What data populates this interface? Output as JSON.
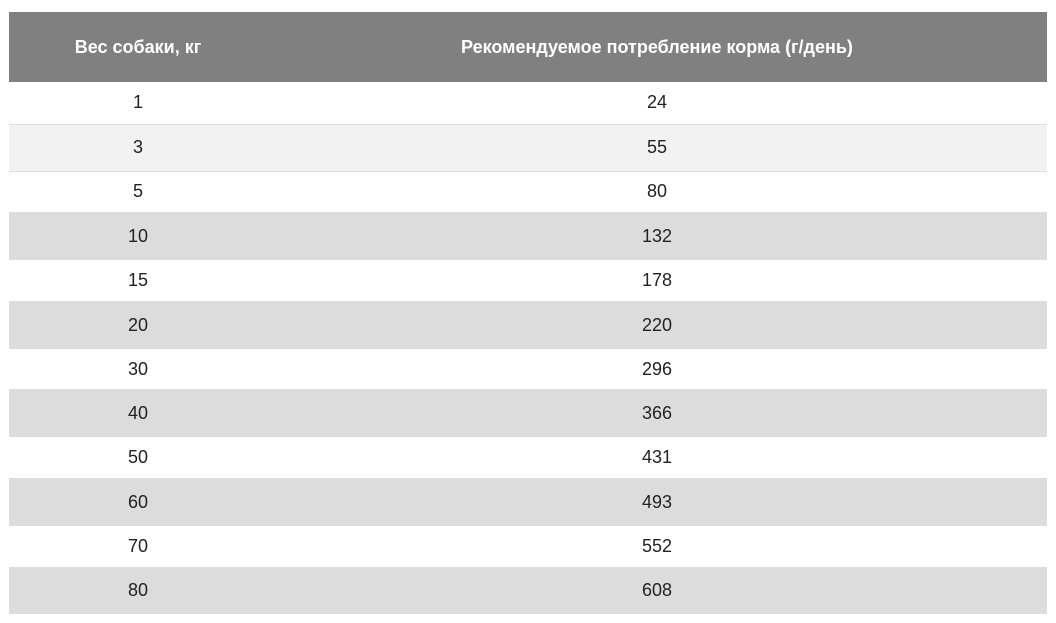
{
  "table": {
    "headers": [
      "Вес собаки, кг",
      "Рекомендуемое потребление корма (г/день)"
    ],
    "rows": [
      [
        "1",
        "24"
      ],
      [
        "3",
        "55"
      ],
      [
        "5",
        "80"
      ],
      [
        "10",
        "132"
      ],
      [
        "15",
        "178"
      ],
      [
        "20",
        "220"
      ],
      [
        "30",
        "296"
      ],
      [
        "40",
        "366"
      ],
      [
        "50",
        "431"
      ],
      [
        "60",
        "493"
      ],
      [
        "70",
        "552"
      ],
      [
        "80",
        "608"
      ]
    ]
  },
  "colors": {
    "header_background": "#808080",
    "header_text": "#ffffff",
    "row_white": "#ffffff",
    "row_light": "#f2f2f2",
    "row_gray": "#dcdcdc",
    "cell_text": "#222222"
  }
}
